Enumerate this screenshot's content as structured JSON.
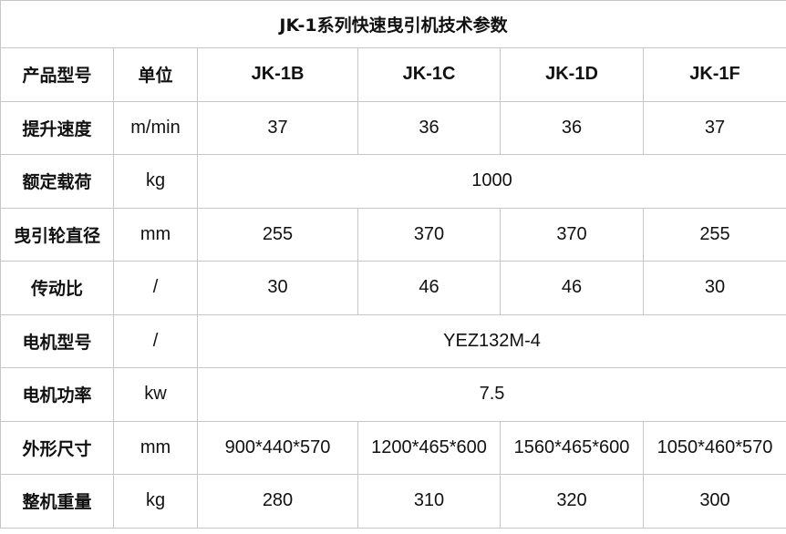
{
  "title": "JK-1系列快速曳引机技术参数",
  "header": {
    "name": "产品型号",
    "unit": "单位",
    "models": [
      "JK-1B",
      "JK-1C",
      "JK-1D",
      "JK-1F"
    ]
  },
  "rows": [
    {
      "name": "提升速度",
      "unit": "m/min",
      "values": [
        "37",
        "36",
        "36",
        "37"
      ]
    },
    {
      "name": "额定载荷",
      "unit": "kg",
      "merged": "1000"
    },
    {
      "name": "曳引轮直径",
      "unit": "mm",
      "values": [
        "255",
        "370",
        "370",
        "255"
      ]
    },
    {
      "name": "传动比",
      "unit": "/",
      "values": [
        "30",
        "46",
        "46",
        "30"
      ]
    },
    {
      "name": "电机型号",
      "unit": "/",
      "merged": "YEZ132M-4"
    },
    {
      "name": "电机功率",
      "unit": "kw",
      "merged": "7.5"
    },
    {
      "name": "外形尺寸",
      "unit": "mm",
      "values": [
        "900*440*570",
        "1200*465*600",
        "1560*465*600",
        "1050*460*570"
      ]
    },
    {
      "name": "整机重量",
      "unit": "kg",
      "values": [
        "280",
        "310",
        "320",
        "300"
      ]
    }
  ]
}
